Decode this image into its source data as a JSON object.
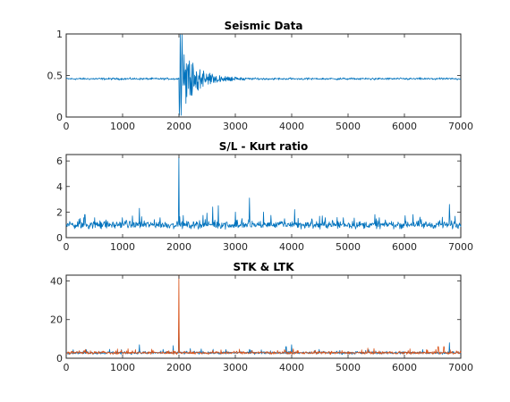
{
  "colors": {
    "series_blue": "#0072BD",
    "series_orange": "#D95319",
    "axis": "#262626",
    "background": "#ffffff"
  },
  "chart_data": [
    {
      "type": "line",
      "title": "Seismic Data",
      "xlabel": "",
      "ylabel": "",
      "xlim": [
        0,
        7000
      ],
      "ylim": [
        0,
        1
      ],
      "xticks": [
        "0",
        "1000",
        "2000",
        "3000",
        "4000",
        "5000",
        "6000",
        "7000"
      ],
      "yticks": [
        "0",
        "0.5",
        "1"
      ],
      "grid": false,
      "series": [
        {
          "color": "#0072BD",
          "description_points": {
            "baseline": 0.46,
            "noise_amplitude": 0.015,
            "event_onset_x": 2000,
            "event_peak_max": 1.0,
            "event_peak_min": 0.02,
            "coda_end_x": 3200,
            "x_max": 7000
          }
        }
      ]
    },
    {
      "type": "line",
      "title": "S/L - Kurt ratio",
      "xlabel": "",
      "ylabel": "",
      "xlim": [
        0,
        7000
      ],
      "ylim": [
        0,
        6.5
      ],
      "xticks": [
        "0",
        "1000",
        "2000",
        "3000",
        "4000",
        "5000",
        "6000",
        "7000"
      ],
      "yticks": [
        "0",
        "2",
        "4",
        "6"
      ],
      "grid": false,
      "series": [
        {
          "color": "#0072BD",
          "description_points": {
            "baseline": 1.0,
            "noise_amplitude": 0.35,
            "spikes": [
              [
                330,
                1.8
              ],
              [
                1300,
                2.3
              ],
              [
                2000,
                6.3
              ],
              [
                2600,
                2.4
              ],
              [
                2700,
                2.5
              ],
              [
                3000,
                2.0
              ],
              [
                3250,
                3.1
              ],
              [
                3500,
                2.0
              ],
              [
                4050,
                2.2
              ],
              [
                6150,
                1.8
              ],
              [
                6800,
                2.6
              ]
            ],
            "x_max": 7000
          }
        }
      ]
    },
    {
      "type": "line",
      "title": "STK & LTK",
      "xlabel": "",
      "ylabel": "",
      "xlim": [
        0,
        7000
      ],
      "ylim": [
        0,
        43
      ],
      "xticks": [
        "0",
        "1000",
        "2000",
        "3000",
        "4000",
        "5000",
        "6000",
        "7000"
      ],
      "yticks": [
        "0",
        "20",
        "40"
      ],
      "grid": false,
      "series": [
        {
          "color": "#0072BD",
          "description_points": {
            "baseline": 2.8,
            "noise_amplitude": 0.8,
            "spikes": [
              [
                1300,
                7
              ],
              [
                1900,
                6.5
              ],
              [
                2000,
                21
              ],
              [
                2200,
                5
              ],
              [
                3900,
                6
              ],
              [
                4000,
                7
              ],
              [
                6800,
                8
              ]
            ],
            "x_max": 7000
          }
        },
        {
          "color": "#D95319",
          "description_points": {
            "baseline": 2.8,
            "noise_amplitude": 0.9,
            "spikes": [
              [
                1900,
                4
              ],
              [
                2000,
                43
              ],
              [
                2200,
                4
              ],
              [
                2600,
                4
              ],
              [
                3300,
                4
              ],
              [
                4100,
                4
              ],
              [
                6600,
                6
              ],
              [
                6700,
                6
              ]
            ],
            "x_max": 7000
          }
        }
      ]
    }
  ]
}
